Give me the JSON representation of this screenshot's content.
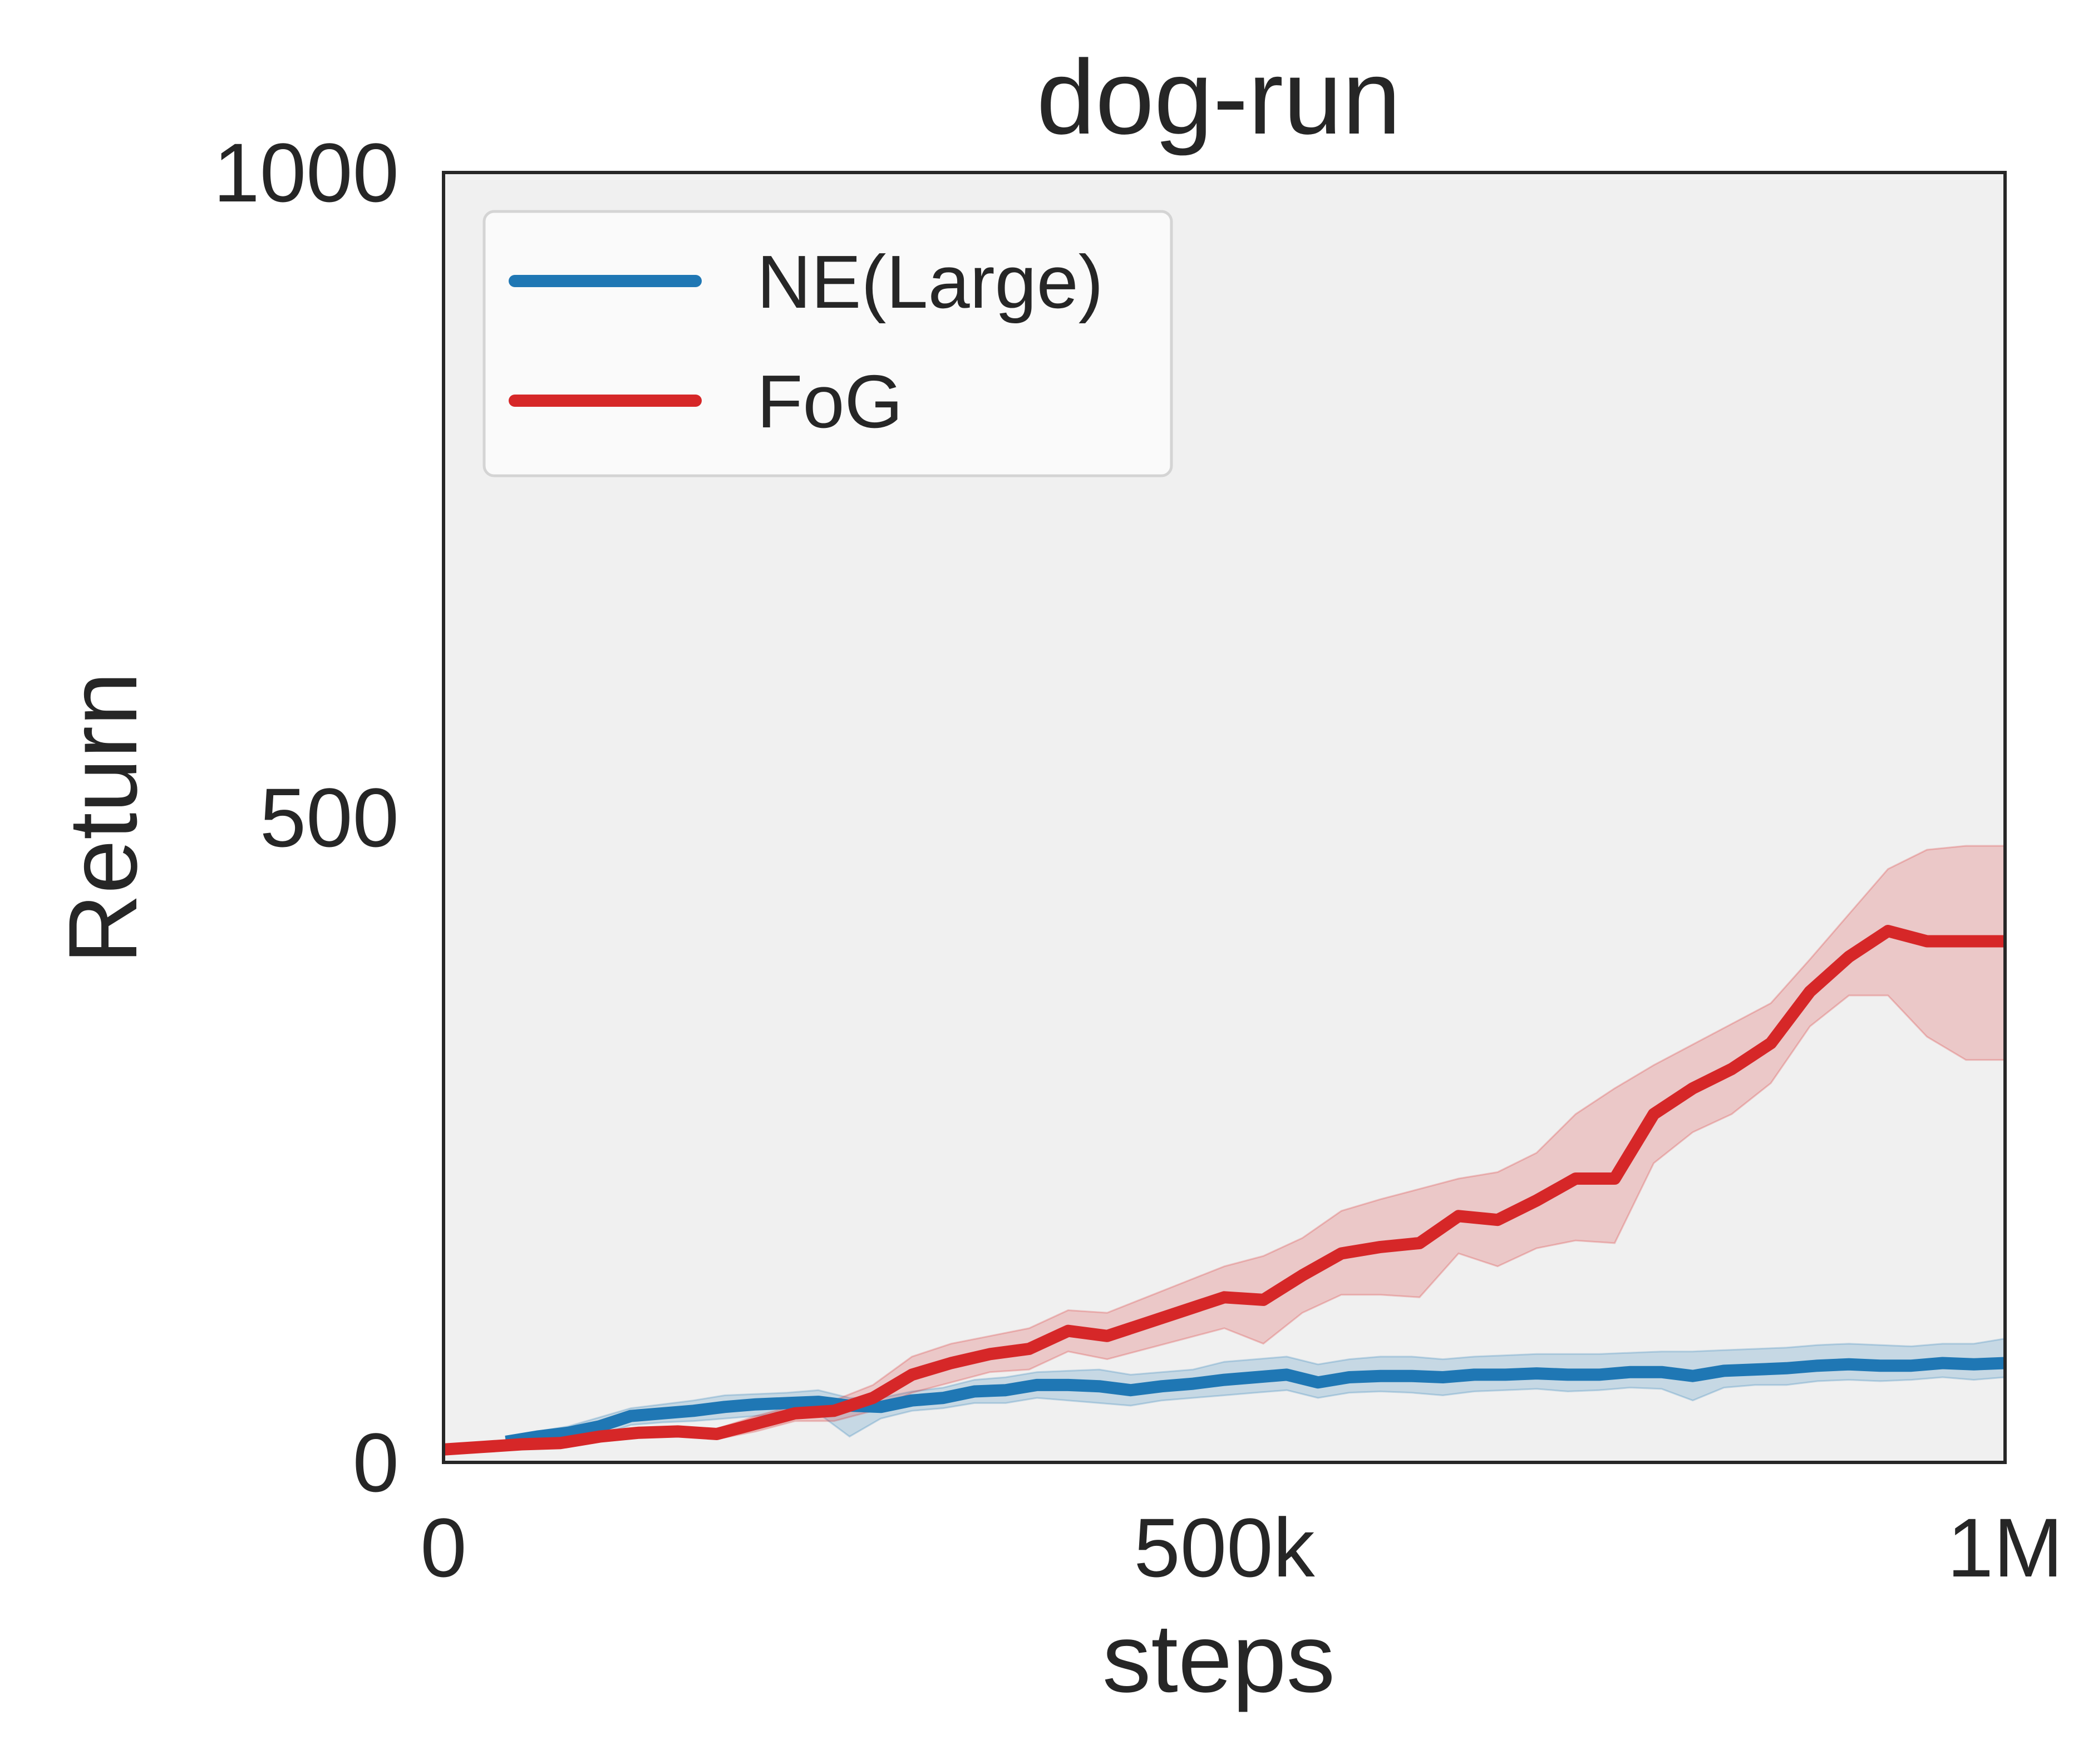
{
  "chart_data": {
    "type": "line",
    "title": "dog-run",
    "xlabel": "steps",
    "ylabel": "Return",
    "xlim": [
      0,
      1000000
    ],
    "ylim": [
      0,
      1000
    ],
    "xticks": [
      {
        "value": 0,
        "label": "0"
      },
      {
        "value": 500000,
        "label": "500k"
      },
      {
        "value": 1000000,
        "label": "1M"
      }
    ],
    "yticks": [
      {
        "value": 0,
        "label": "0"
      },
      {
        "value": 500,
        "label": "500"
      },
      {
        "value": 1000,
        "label": "1000"
      }
    ],
    "grid": false,
    "legend_position": "top-left",
    "background": "#f0f0f0",
    "series": [
      {
        "name": "NE(Large)",
        "color": "#1f77b4",
        "x": [
          40000,
          60000,
          80000,
          100000,
          120000,
          140000,
          160000,
          180000,
          200000,
          220000,
          240000,
          260000,
          280000,
          300000,
          320000,
          340000,
          360000,
          380000,
          400000,
          420000,
          440000,
          460000,
          480000,
          500000,
          520000,
          540000,
          560000,
          580000,
          600000,
          620000,
          640000,
          660000,
          680000,
          700000,
          720000,
          740000,
          760000,
          780000,
          800000,
          820000,
          840000,
          860000,
          880000,
          900000,
          920000,
          940000,
          960000,
          980000,
          1000000
        ],
        "y": [
          16,
          20,
          23,
          28,
          36,
          38,
          40,
          43,
          45,
          46,
          47,
          44,
          43,
          48,
          50,
          55,
          56,
          60,
          60,
          59,
          56,
          59,
          61,
          64,
          66,
          68,
          62,
          66,
          67,
          67,
          66,
          68,
          68,
          69,
          68,
          68,
          70,
          70,
          67,
          71,
          72,
          73,
          75,
          76,
          75,
          75,
          77,
          76,
          77
        ],
        "band_upper": [
          20,
          24,
          28,
          35,
          42,
          45,
          48,
          52,
          53,
          54,
          56,
          50,
          50,
          55,
          58,
          64,
          66,
          70,
          71,
          72,
          68,
          70,
          72,
          78,
          80,
          82,
          76,
          80,
          82,
          82,
          80,
          82,
          83,
          84,
          84,
          84,
          85,
          86,
          86,
          87,
          88,
          89,
          91,
          92,
          91,
          90,
          92,
          92,
          96
        ],
        "band_lower": [
          12,
          15,
          18,
          21,
          29,
          31,
          32,
          34,
          36,
          38,
          38,
          20,
          34,
          40,
          42,
          46,
          46,
          50,
          48,
          46,
          44,
          48,
          50,
          52,
          54,
          56,
          50,
          54,
          55,
          54,
          52,
          55,
          56,
          57,
          55,
          56,
          58,
          57,
          48,
          58,
          60,
          60,
          63,
          64,
          63,
          64,
          66,
          64,
          66
        ]
      },
      {
        "name": "FoG",
        "color": "#d62728",
        "x": [
          0,
          25000,
          50000,
          75000,
          100000,
          125000,
          150000,
          175000,
          200000,
          225000,
          250000,
          275000,
          300000,
          325000,
          350000,
          375000,
          400000,
          425000,
          450000,
          475000,
          500000,
          525000,
          550000,
          575000,
          600000,
          625000,
          650000,
          675000,
          700000,
          725000,
          750000,
          775000,
          800000,
          825000,
          850000,
          875000,
          900000,
          925000,
          950000,
          975000,
          1000000
        ],
        "y": [
          10,
          12,
          14,
          15,
          20,
          23,
          24,
          22,
          30,
          38,
          40,
          50,
          68,
          77,
          84,
          88,
          102,
          98,
          108,
          118,
          128,
          126,
          145,
          162,
          167,
          170,
          191,
          188,
          203,
          220,
          220,
          270,
          290,
          305,
          325,
          365,
          392,
          412,
          404,
          404,
          404
        ],
        "band_upper": [
          12,
          14,
          16,
          18,
          24,
          27,
          28,
          26,
          36,
          44,
          48,
          60,
          82,
          92,
          98,
          104,
          118,
          116,
          128,
          140,
          152,
          160,
          174,
          195,
          204,
          212,
          220,
          225,
          240,
          270,
          290,
          308,
          324,
          340,
          356,
          390,
          425,
          460,
          475,
          478,
          478
        ],
        "band_lower": [
          8,
          10,
          12,
          12,
          16,
          19,
          20,
          18,
          24,
          32,
          32,
          40,
          54,
          62,
          70,
          72,
          86,
          80,
          88,
          96,
          104,
          92,
          116,
          130,
          130,
          128,
          162,
          152,
          166,
          172,
          170,
          232,
          256,
          270,
          294,
          338,
          362,
          362,
          330,
          312,
          312
        ]
      }
    ]
  }
}
